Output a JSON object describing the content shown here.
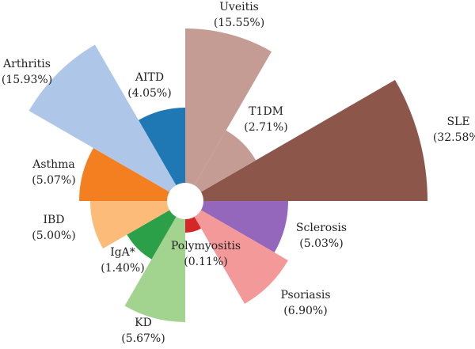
{
  "chart_data": {
    "type": "polar-area",
    "title": "",
    "unit": "%",
    "categories": [
      "SLE",
      "Sclerosis",
      "Psoriasis",
      "Polymyositis",
      "KD",
      "IgA*",
      "IBD",
      "Asthma",
      "Arthritis",
      "AITD",
      "Uveitis",
      "T1DM"
    ],
    "values": [
      32.58,
      5.03,
      6.9,
      0.11,
      5.67,
      1.4,
      5.0,
      5.07,
      15.93,
      4.05,
      15.55,
      2.71
    ],
    "value_labels": [
      "(32.58%)",
      "(5.03%)",
      "(6.90%)",
      "(0.11%)",
      "(5.67%)",
      "(1.40%)",
      "(5.00%)",
      "(5.07%)",
      "(15.93%)",
      "(4.05%)",
      "(15.55%)",
      "(2.71%)"
    ],
    "colors": [
      "#8c564b",
      "#9467bd",
      "#f4999a",
      "#d62728",
      "#a3d48f",
      "#2ca048",
      "#fdbb7a",
      "#f47f20",
      "#aec7e8",
      "#1f77b4",
      "#c49c94",
      "#c49c94"
    ],
    "center_hole": true,
    "legend": "none"
  }
}
